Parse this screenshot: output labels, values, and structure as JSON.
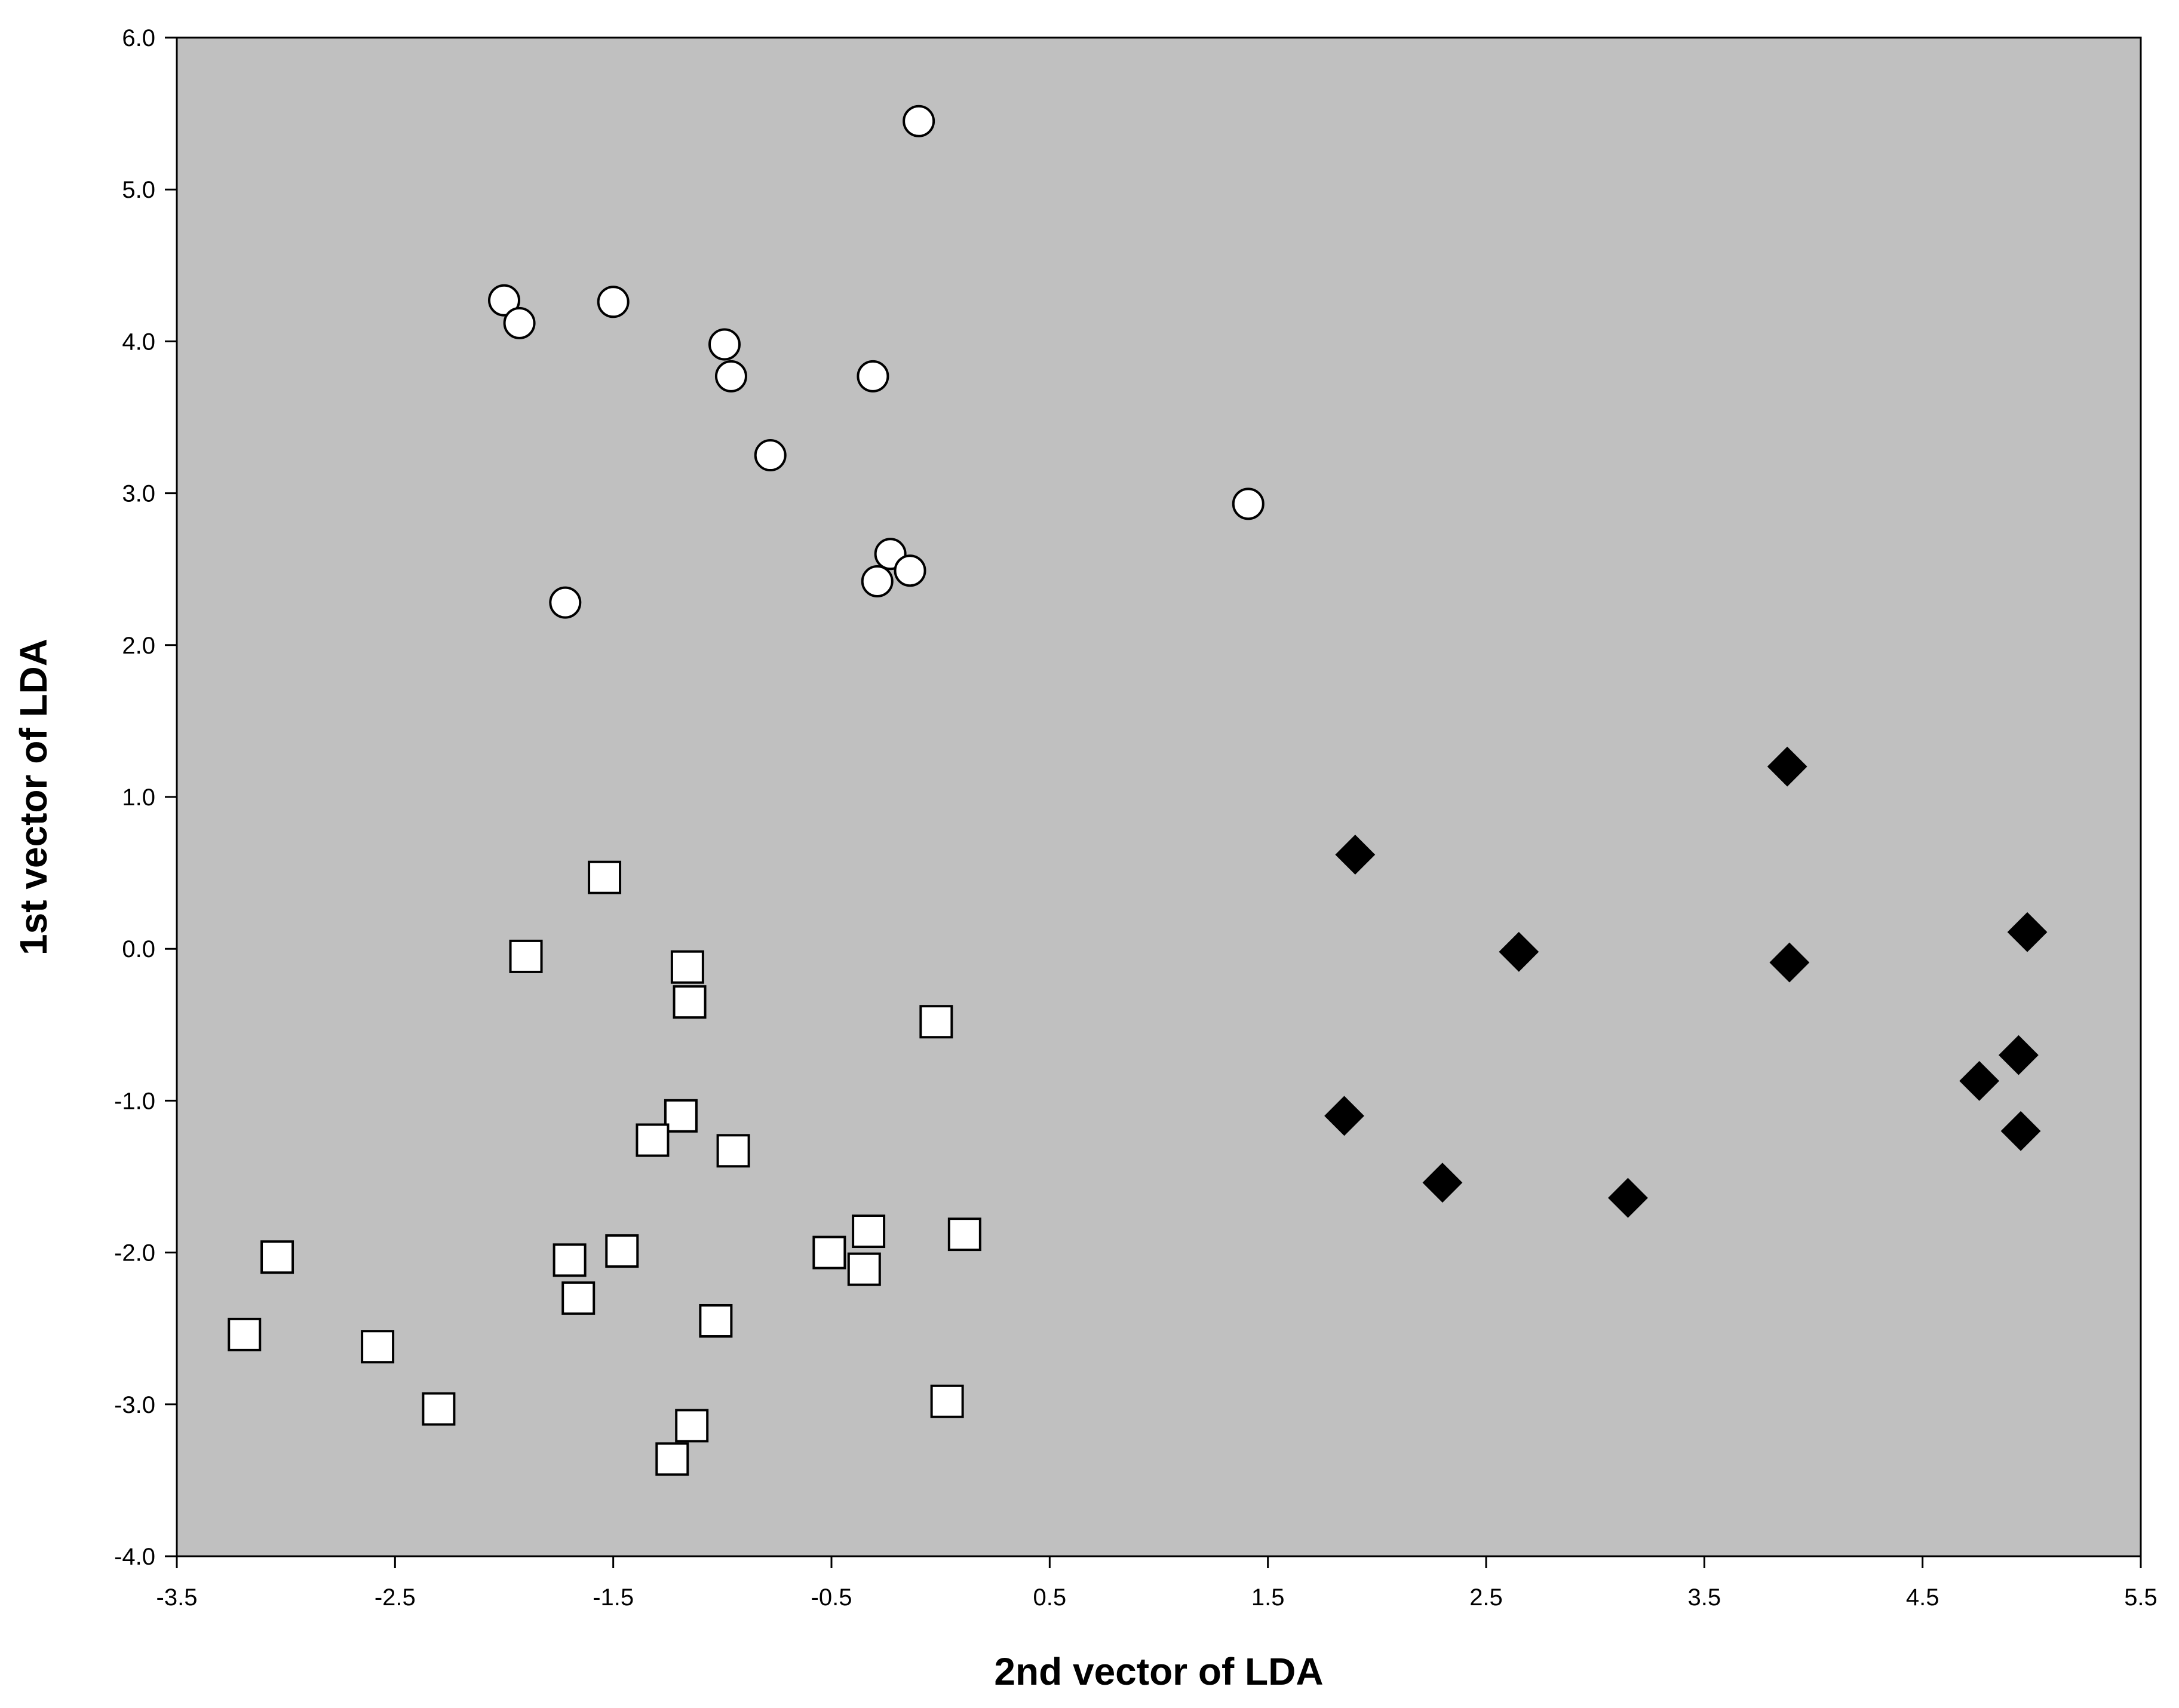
{
  "chart_data": {
    "type": "scatter",
    "title": "",
    "xlabel": "2nd vector of LDA",
    "ylabel": "1st vector of LDA",
    "xlim": [
      -3.5,
      5.5
    ],
    "ylim": [
      -4.0,
      6.0
    ],
    "xticks": [
      -3.5,
      -2.5,
      -1.5,
      -0.5,
      0.5,
      1.5,
      2.5,
      3.5,
      4.5,
      5.5
    ],
    "yticks": [
      -4.0,
      -3.0,
      -2.0,
      -1.0,
      0.0,
      1.0,
      2.0,
      3.0,
      4.0,
      5.0,
      6.0
    ],
    "xtick_labels": [
      "-3.5",
      "-2.5",
      "-1.5",
      "-0.5",
      "0.5",
      "1.5",
      "2.5",
      "3.5",
      "4.5",
      "5.5"
    ],
    "ytick_labels": [
      "-4.0",
      "-3.0",
      "-2.0",
      "-1.0",
      "0.0",
      "1.0",
      "2.0",
      "3.0",
      "4.0",
      "5.0",
      "6.0"
    ],
    "grid": false,
    "legend": "none",
    "plot_background": "#c0c0c0",
    "series": [
      {
        "marker": "circle",
        "fill": "#ffffff",
        "stroke": "#000000",
        "points": [
          [
            -0.1,
            5.45
          ],
          [
            -2.0,
            4.27
          ],
          [
            -1.93,
            4.12
          ],
          [
            -1.5,
            4.26
          ],
          [
            -0.99,
            3.98
          ],
          [
            -0.96,
            3.77
          ],
          [
            -0.31,
            3.77
          ],
          [
            -0.78,
            3.25
          ],
          [
            1.41,
            2.93
          ],
          [
            -0.23,
            2.6
          ],
          [
            -0.14,
            2.49
          ],
          [
            -0.29,
            2.42
          ],
          [
            -1.72,
            2.28
          ]
        ]
      },
      {
        "marker": "square",
        "fill": "#ffffff",
        "stroke": "#000000",
        "points": [
          [
            -1.54,
            0.47
          ],
          [
            -1.9,
            -0.05
          ],
          [
            -1.16,
            -0.12
          ],
          [
            -1.15,
            -0.35
          ],
          [
            -0.02,
            -0.48
          ],
          [
            -1.19,
            -1.1
          ],
          [
            -1.32,
            -1.26
          ],
          [
            -0.95,
            -1.33
          ],
          [
            -3.04,
            -2.03
          ],
          [
            -1.46,
            -1.99
          ],
          [
            -1.7,
            -2.05
          ],
          [
            -1.66,
            -2.3
          ],
          [
            -0.51,
            -2.0
          ],
          [
            -0.33,
            -1.86
          ],
          [
            -0.35,
            -2.11
          ],
          [
            0.11,
            -1.88
          ],
          [
            -1.03,
            -2.45
          ],
          [
            -3.19,
            -2.54
          ],
          [
            -2.58,
            -2.62
          ],
          [
            -2.3,
            -3.03
          ],
          [
            0.03,
            -2.98
          ],
          [
            -1.14,
            -3.14
          ],
          [
            -1.23,
            -3.36
          ]
        ]
      },
      {
        "marker": "diamond",
        "fill": "#000000",
        "stroke": "#000000",
        "points": [
          [
            3.88,
            1.2
          ],
          [
            1.9,
            0.62
          ],
          [
            2.65,
            -0.02
          ],
          [
            3.89,
            -0.09
          ],
          [
            4.98,
            0.11
          ],
          [
            4.76,
            -0.87
          ],
          [
            4.94,
            -0.7
          ],
          [
            4.95,
            -1.2
          ],
          [
            1.85,
            -1.1
          ],
          [
            2.3,
            -1.54
          ],
          [
            3.15,
            -1.64
          ]
        ]
      }
    ]
  }
}
